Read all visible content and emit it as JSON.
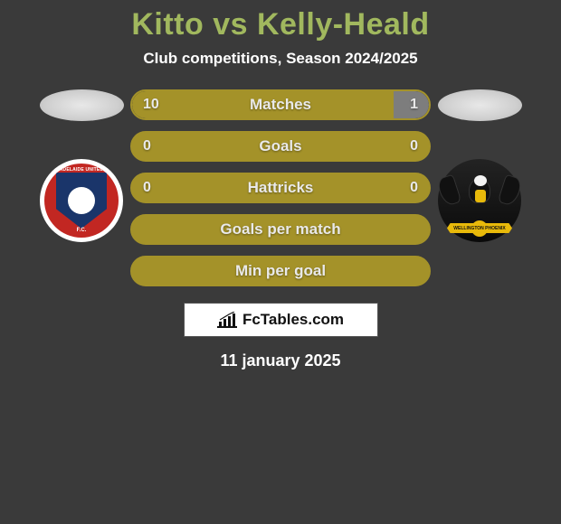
{
  "title_color": "#a1b85e",
  "title": "Kitto vs Kelly-Heald",
  "subtitle": "Club competitions, Season 2024/2025",
  "bar_color": "#a49229",
  "bar_border_color": "#a49229",
  "right_segment_color": "#7d7d7d",
  "background_color": "#3a3a3a",
  "bars": [
    {
      "label": "Matches",
      "left": "10",
      "right": "1",
      "left_pct": 88,
      "right_pct": 12,
      "has_right_segment": true
    },
    {
      "label": "Goals",
      "left": "0",
      "right": "0",
      "left_pct": 100,
      "right_pct": 0,
      "has_right_segment": false
    },
    {
      "label": "Hattricks",
      "left": "0",
      "right": "0",
      "left_pct": 100,
      "right_pct": 0,
      "has_right_segment": false
    },
    {
      "label": "Goals per match",
      "left": "",
      "right": "",
      "left_pct": 100,
      "right_pct": 0,
      "has_right_segment": false
    },
    {
      "label": "Min per goal",
      "left": "",
      "right": "",
      "left_pct": 100,
      "right_pct": 0,
      "has_right_segment": false
    }
  ],
  "team_left": {
    "name": "Adelaide United F.C.",
    "shield_color": "#1a356a",
    "ring_color": "#c22722",
    "text_top": "ADELAIDE UNITED",
    "text_bottom": "F.C."
  },
  "team_right": {
    "name": "Wellington Phoenix",
    "accent_color": "#e8b90a",
    "ribbon_text": "WELLINGTON PHOENIX"
  },
  "logo_text": "FcTables.com",
  "date": "11 january 2025",
  "fonts": {
    "title_size": 34,
    "subtitle_size": 17,
    "bar_label_size": 17,
    "bar_value_size": 16,
    "date_size": 18
  }
}
